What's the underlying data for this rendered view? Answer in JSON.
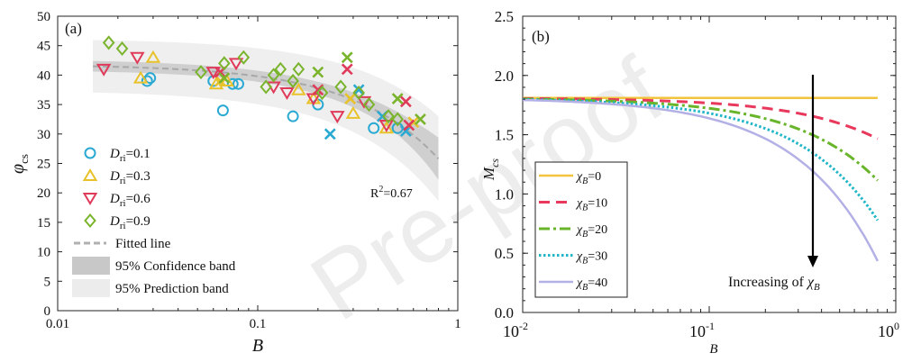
{
  "watermark": "Pre-proof",
  "chart_data": [
    {
      "panel_label": "(a)",
      "type": "scatter",
      "xscale": "log",
      "xlim": [
        0.01,
        1
      ],
      "ylim": [
        0,
        50
      ],
      "xlabel": "B",
      "ylabel_main": "φ",
      "ylabel_sub": "cs",
      "xticks": [
        {
          "v": 0.01,
          "label": "0.01"
        },
        {
          "v": 0.1,
          "label": "0.1"
        },
        {
          "v": 1,
          "label": "1"
        }
      ],
      "yticks": [
        0,
        5,
        10,
        15,
        20,
        25,
        30,
        35,
        40,
        45,
        50
      ],
      "annotation": {
        "r2_main": "R",
        "r2_sup": "2",
        "r2_rest": "=0.67"
      },
      "fit": {
        "a": 41.8,
        "b": 20.0,
        "x_range": [
          0.015,
          0.8
        ]
      },
      "legend": [
        {
          "sym": "Ｄ",
          "main": "D",
          "sub": "ri",
          "rest": "=0.1",
          "marker": "circle",
          "color": "#2aa9d2"
        },
        {
          "main": "D",
          "sub": "ri",
          "rest": "=0.3",
          "marker": "triangle-up",
          "color": "#e8c22a"
        },
        {
          "main": "D",
          "sub": "ri",
          "rest": "=0.6",
          "marker": "triangle-down",
          "color": "#e03a5a"
        },
        {
          "main": "D",
          "sub": "ri",
          "rest": "=0.9",
          "marker": "diamond",
          "color": "#7ab42d"
        },
        {
          "main": "Fitted line",
          "marker": "dash",
          "color": "#b0b0b0"
        },
        {
          "main": "95% Confidence band",
          "marker": "box",
          "color": "#c8c8c8"
        },
        {
          "main": "95% Prediction band",
          "marker": "box",
          "color": "#ececec"
        }
      ],
      "series": [
        {
          "name": "D_ri=0.1 circle",
          "marker": "circle",
          "color": "#2aa9d2",
          "points": [
            [
              0.028,
              39
            ],
            [
              0.029,
              39.5
            ],
            [
              0.06,
              39
            ],
            [
              0.067,
              34
            ],
            [
              0.075,
              38.5
            ],
            [
              0.08,
              38.5
            ],
            [
              0.15,
              33
            ],
            [
              0.2,
              35
            ],
            [
              0.38,
              31
            ],
            [
              0.5,
              31
            ]
          ]
        },
        {
          "name": "D_ri=0.1 cross",
          "marker": "cross",
          "color": "#2aa9d2",
          "points": [
            [
              0.23,
              30
            ],
            [
              0.32,
              37.5
            ],
            [
              0.42,
              33
            ],
            [
              0.55,
              30.5
            ]
          ]
        },
        {
          "name": "D_ri=0.3 triangle",
          "marker": "triangle-up",
          "color": "#e8c22a",
          "points": [
            [
              0.026,
              39.5
            ],
            [
              0.03,
              43
            ],
            [
              0.062,
              38.5
            ],
            [
              0.07,
              39
            ],
            [
              0.16,
              37.5
            ],
            [
              0.19,
              36
            ],
            [
              0.3,
              33.5
            ],
            [
              0.44,
              31
            ]
          ]
        },
        {
          "name": "D_ri=0.3 cross",
          "marker": "cross",
          "color": "#e8c22a",
          "points": [
            [
              0.065,
              39
            ],
            [
              0.29,
              36
            ],
            [
              0.6,
              32
            ]
          ]
        },
        {
          "name": "D_ri=0.6 triangle",
          "marker": "triangle-down",
          "color": "#e03a5a",
          "points": [
            [
              0.017,
              41
            ],
            [
              0.025,
              43
            ],
            [
              0.06,
              40.5
            ],
            [
              0.078,
              42
            ],
            [
              0.12,
              38
            ],
            [
              0.14,
              37
            ],
            [
              0.19,
              36
            ],
            [
              0.25,
              33
            ],
            [
              0.34,
              35.5
            ],
            [
              0.44,
              31.5
            ]
          ]
        },
        {
          "name": "D_ri=0.6 cross",
          "marker": "cross",
          "color": "#e03a5a",
          "points": [
            [
              0.065,
              40.5
            ],
            [
              0.2,
              37.5
            ],
            [
              0.28,
              41
            ],
            [
              0.55,
              35.5
            ],
            [
              0.57,
              31.5
            ]
          ]
        },
        {
          "name": "D_ri=0.9 diamond",
          "marker": "diamond",
          "color": "#7ab42d",
          "points": [
            [
              0.018,
              45.5
            ],
            [
              0.021,
              44.5
            ],
            [
              0.052,
              40.5
            ],
            [
              0.068,
              42
            ],
            [
              0.085,
              43
            ],
            [
              0.11,
              38
            ],
            [
              0.12,
              40
            ],
            [
              0.13,
              41
            ],
            [
              0.15,
              39
            ],
            [
              0.16,
              41
            ],
            [
              0.21,
              37
            ],
            [
              0.26,
              38
            ],
            [
              0.32,
              37
            ],
            [
              0.36,
              35
            ],
            [
              0.45,
              33
            ],
            [
              0.5,
              32.5
            ]
          ]
        },
        {
          "name": "D_ri=0.9 cross",
          "marker": "cross",
          "color": "#7ab42d",
          "points": [
            [
              0.068,
              39.5
            ],
            [
              0.2,
              40.5
            ],
            [
              0.28,
              43
            ],
            [
              0.5,
              36
            ],
            [
              0.65,
              32.5
            ]
          ]
        }
      ]
    },
    {
      "panel_label": "(b)",
      "type": "line",
      "xscale": "log",
      "xlim": [
        0.01,
        1
      ],
      "ylim": [
        0.0,
        2.5
      ],
      "xlabel": "B",
      "ylabel_main": "M",
      "ylabel_sub": "cs",
      "xticks": [
        {
          "v": 0.01,
          "base": "10",
          "exp": "-2"
        },
        {
          "v": 0.1,
          "base": "10",
          "exp": "-1"
        },
        {
          "v": 1,
          "base": "10",
          "exp": "0"
        }
      ],
      "yticks": [
        {
          "v": 0.0,
          "label": "0.0"
        },
        {
          "v": 0.5,
          "label": "0.5"
        },
        {
          "v": 1.0,
          "label": "1.0"
        },
        {
          "v": 1.5,
          "label": "1.5"
        },
        {
          "v": 2.0,
          "label": "2.0"
        },
        {
          "v": 2.5,
          "label": "2.5"
        }
      ],
      "x_range": [
        0.01,
        0.8
      ],
      "series": [
        {
          "chi": 0,
          "sym": "χ",
          "sub": "B",
          "rest": "=0",
          "color": "#f2c43d",
          "dash": "",
          "width": 2.5,
          "y0": 1.81,
          "k": 0.0
        },
        {
          "chi": 10,
          "sym": "χ",
          "sub": "B",
          "rest": "=10",
          "color": "#e8385c",
          "dash": "12,7",
          "width": 3,
          "y0": 1.81,
          "k": 0.43
        },
        {
          "chi": 20,
          "sym": "χ",
          "sub": "B",
          "rest": "=20",
          "color": "#68b42a",
          "dash": "12,4,3,4",
          "width": 3,
          "y0": 1.81,
          "k": 0.87
        },
        {
          "chi": 30,
          "sym": "χ",
          "sub": "B",
          "rest": "=30",
          "color": "#20b6c8",
          "dash": "2.5,2.5",
          "width": 3,
          "y0": 1.81,
          "k": 1.29
        },
        {
          "chi": 40,
          "sym": "χ",
          "sub": "B",
          "rest": "=40",
          "color": "#b3b0e6",
          "dash": "",
          "width": 2.5,
          "y0": 1.81,
          "k": 1.72
        }
      ],
      "arrow_text_main": "Increasing of ",
      "arrow_text_sym": "χ",
      "arrow_text_sub": "B"
    }
  ]
}
